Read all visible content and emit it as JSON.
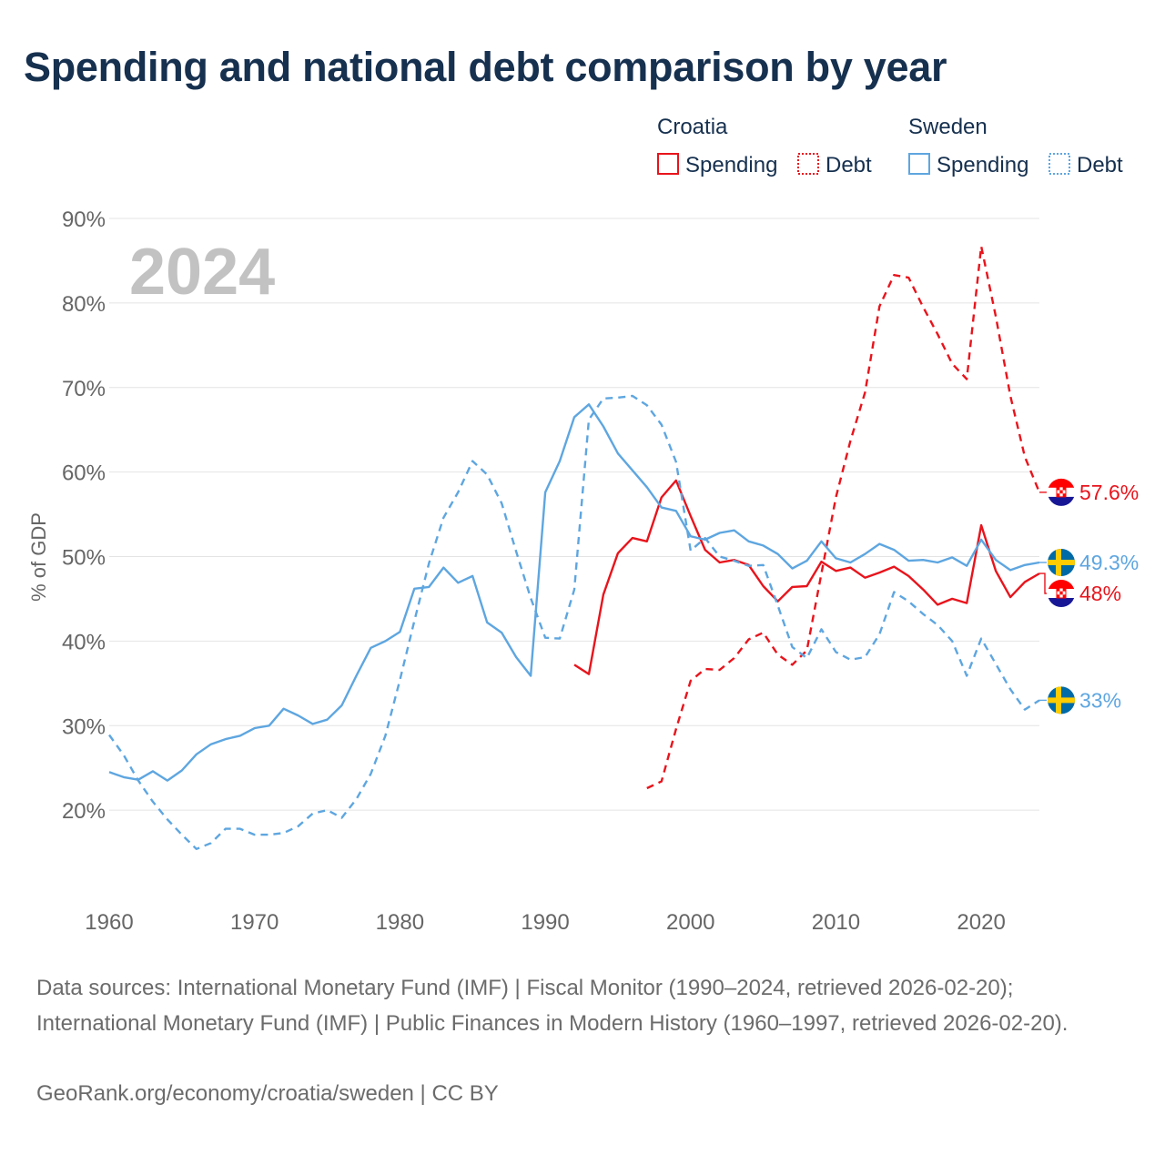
{
  "chart_data": {
    "type": "line",
    "title": "Spending and national debt comparison by year",
    "year_label": "2024",
    "ylabel": "% of GDP",
    "xlim": [
      1960,
      2024
    ],
    "ylim": [
      10,
      90
    ],
    "y_ticks": [
      20,
      30,
      40,
      50,
      60,
      70,
      80,
      90
    ],
    "y_tick_labels": [
      "20%",
      "30%",
      "40%",
      "50%",
      "60%",
      "70%",
      "80%",
      "90%"
    ],
    "x_ticks": [
      1960,
      1970,
      1980,
      1990,
      2000,
      2010,
      2020
    ],
    "x_tick_labels": [
      "1960",
      "1970",
      "1980",
      "1990",
      "2000",
      "2010",
      "2020"
    ],
    "grid": true,
    "legend": {
      "placement": "top-right",
      "groups": [
        {
          "country": "Croatia",
          "color": "#e8141c",
          "spending_label": "Spending",
          "debt_label": "Debt"
        },
        {
          "country": "Sweden",
          "color": "#5ea6e0",
          "spending_label": "Spending",
          "debt_label": "Debt"
        }
      ]
    },
    "series": [
      {
        "name": "Croatia Spending",
        "country": "Croatia",
        "style": "solid",
        "color": "#e8141c",
        "end_label": "48%",
        "flag": "croatia-flag",
        "x": [
          1992,
          1993,
          1994,
          1995,
          1996,
          1997,
          1998,
          1999,
          2000,
          2001,
          2002,
          2003,
          2004,
          2005,
          2006,
          2007,
          2008,
          2009,
          2010,
          2011,
          2012,
          2013,
          2014,
          2015,
          2016,
          2017,
          2018,
          2019,
          2020,
          2021,
          2022,
          2023,
          2024
        ],
        "values": [
          37.2,
          36.1,
          45.5,
          50.4,
          52.2,
          51.8,
          57.0,
          59.0,
          54.8,
          50.8,
          49.3,
          49.6,
          49.0,
          46.5,
          44.7,
          46.4,
          46.5,
          49.4,
          48.3,
          48.7,
          47.5,
          48.1,
          48.8,
          47.7,
          46.1,
          44.3,
          45.0,
          44.5,
          53.7,
          48.3,
          45.2,
          47.0,
          48.0
        ]
      },
      {
        "name": "Croatia Debt",
        "country": "Croatia",
        "style": "dashed",
        "color": "#e8141c",
        "end_label": "57.6%",
        "flag": "croatia-flag",
        "x": [
          1997,
          1998,
          1999,
          2000,
          2001,
          2002,
          2003,
          2004,
          2005,
          2006,
          2007,
          2008,
          2009,
          2010,
          2011,
          2012,
          2013,
          2014,
          2015,
          2016,
          2017,
          2018,
          2019,
          2020,
          2021,
          2022,
          2023,
          2024
        ],
        "values": [
          22.6,
          23.4,
          29.6,
          35.3,
          36.7,
          36.6,
          38.0,
          40.2,
          41.0,
          38.4,
          37.2,
          38.9,
          48.0,
          57.0,
          63.7,
          69.4,
          79.6,
          83.3,
          83.0,
          79.5,
          76.3,
          72.8,
          71.0,
          86.7,
          78.4,
          69.0,
          61.8,
          57.6
        ]
      },
      {
        "name": "Sweden Spending",
        "country": "Sweden",
        "style": "solid",
        "color": "#5ea6e0",
        "end_label": "49.3%",
        "flag": "sweden-flag",
        "x": [
          1960,
          1961,
          1962,
          1963,
          1964,
          1965,
          1966,
          1967,
          1968,
          1969,
          1970,
          1971,
          1972,
          1973,
          1974,
          1975,
          1976,
          1977,
          1978,
          1979,
          1980,
          1981,
          1982,
          1983,
          1984,
          1985,
          1986,
          1987,
          1988,
          1989,
          1990,
          1991,
          1992,
          1993,
          1994,
          1995,
          1996,
          1997,
          1998,
          1999,
          2000,
          2001,
          2002,
          2003,
          2004,
          2005,
          2006,
          2007,
          2008,
          2009,
          2010,
          2011,
          2012,
          2013,
          2014,
          2015,
          2016,
          2017,
          2018,
          2019,
          2020,
          2021,
          2022,
          2023,
          2024
        ],
        "values": [
          24.5,
          23.9,
          23.6,
          24.6,
          23.5,
          24.7,
          26.6,
          27.8,
          28.4,
          28.8,
          29.7,
          30.0,
          32.0,
          31.2,
          30.2,
          30.7,
          32.4,
          35.9,
          39.2,
          40.0,
          41.1,
          46.2,
          46.4,
          48.7,
          46.9,
          47.7,
          42.2,
          41.0,
          38.1,
          35.9,
          57.6,
          61.3,
          66.5,
          68.0,
          65.4,
          62.2,
          60.2,
          58.2,
          55.8,
          55.4,
          52.4,
          52.0,
          52.8,
          53.1,
          51.8,
          51.3,
          50.3,
          48.6,
          49.5,
          51.8,
          49.8,
          49.3,
          50.3,
          51.5,
          50.8,
          49.5,
          49.6,
          49.3,
          49.9,
          48.9,
          52.0,
          49.6,
          48.4,
          49.0,
          49.3
        ]
      },
      {
        "name": "Sweden Debt",
        "country": "Sweden",
        "style": "dashed",
        "color": "#5ea6e0",
        "end_label": "33%",
        "flag": "sweden-flag",
        "x": [
          1960,
          1961,
          1962,
          1963,
          1964,
          1965,
          1966,
          1967,
          1968,
          1969,
          1970,
          1971,
          1972,
          1973,
          1974,
          1975,
          1976,
          1977,
          1978,
          1979,
          1980,
          1981,
          1982,
          1983,
          1984,
          1985,
          1986,
          1987,
          1988,
          1989,
          1990,
          1991,
          1992,
          1993,
          1994,
          1995,
          1996,
          1997,
          1998,
          1999,
          2000,
          2001,
          2002,
          2003,
          2004,
          2005,
          2006,
          2007,
          2008,
          2009,
          2010,
          2011,
          2012,
          2013,
          2014,
          2015,
          2016,
          2017,
          2018,
          2019,
          2020,
          2021,
          2022,
          2023,
          2024
        ],
        "values": [
          28.9,
          26.5,
          23.5,
          21.0,
          18.9,
          17.1,
          15.4,
          16.1,
          17.8,
          17.8,
          17.1,
          17.1,
          17.3,
          18.1,
          19.6,
          20.0,
          19.1,
          21.3,
          24.3,
          28.8,
          35.4,
          42.4,
          49.2,
          54.6,
          57.6,
          61.3,
          59.7,
          56.3,
          50.6,
          45.1,
          40.4,
          40.3,
          46.1,
          66.2,
          68.7,
          68.8,
          69.0,
          67.9,
          65.6,
          61.2,
          50.7,
          52.2,
          50.0,
          49.5,
          48.9,
          49.0,
          44.2,
          39.3,
          38.0,
          41.4,
          38.7,
          37.8,
          38.1,
          40.8,
          45.8,
          44.7,
          43.2,
          41.9,
          40.0,
          35.9,
          40.3,
          37.3,
          34.3,
          31.9,
          33.0
        ]
      }
    ]
  },
  "footer": {
    "sources": "Data sources: International Monetary Fund (IMF) | Fiscal Monitor (1990–2024, retrieved 2026-02-20); International Monetary Fund (IMF) | Public Finances in Modern History (1960–1997, retrieved 2026-02-20).",
    "credit": "GeoRank.org/economy/croatia/sweden | CC BY"
  }
}
